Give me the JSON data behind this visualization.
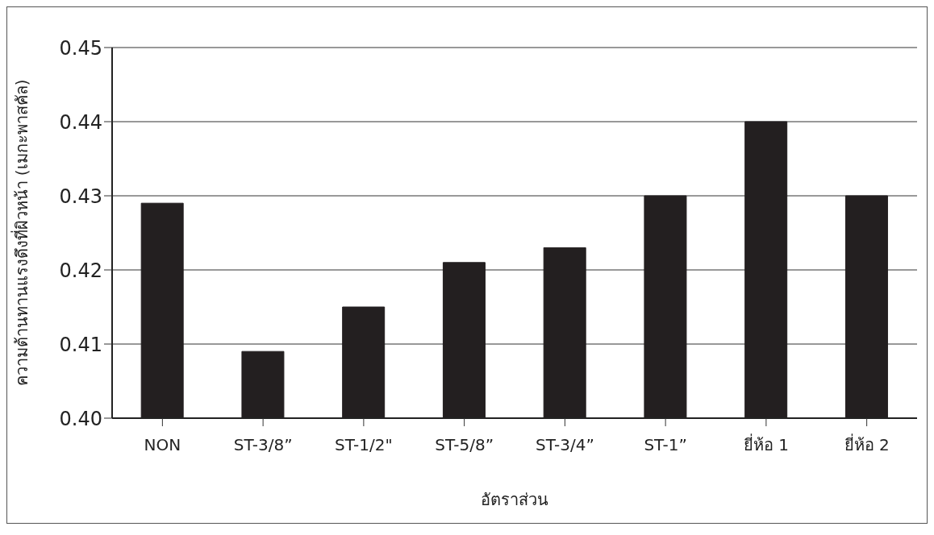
{
  "chart_data": {
    "type": "bar",
    "xlabel": "อัตราส่วน",
    "ylabel": "ความต้านทานแรงดึงที่ผิวหน้า (เมกะพาสคัล)",
    "categories": [
      "NON",
      "ST-3/8”",
      "ST-1/2\"",
      "ST-5/8”",
      "ST-3/4”",
      "ST-1”",
      "ยี่ห้อ 1",
      "ยี่ห้อ 2"
    ],
    "values": [
      0.429,
      0.409,
      0.415,
      0.421,
      0.423,
      0.43,
      0.44,
      0.43
    ],
    "color": "#231f20",
    "ylim": [
      0.4,
      0.45
    ],
    "yticks": [
      {
        "value": 0.4,
        "label": "0.40"
      },
      {
        "value": 0.41,
        "label": "0.41"
      },
      {
        "value": 0.42,
        "label": "0.42"
      },
      {
        "value": 0.43,
        "label": "0.43"
      },
      {
        "value": 0.44,
        "label": "0.44"
      },
      {
        "value": 0.45,
        "label": "0.45"
      }
    ],
    "grid": "y"
  }
}
